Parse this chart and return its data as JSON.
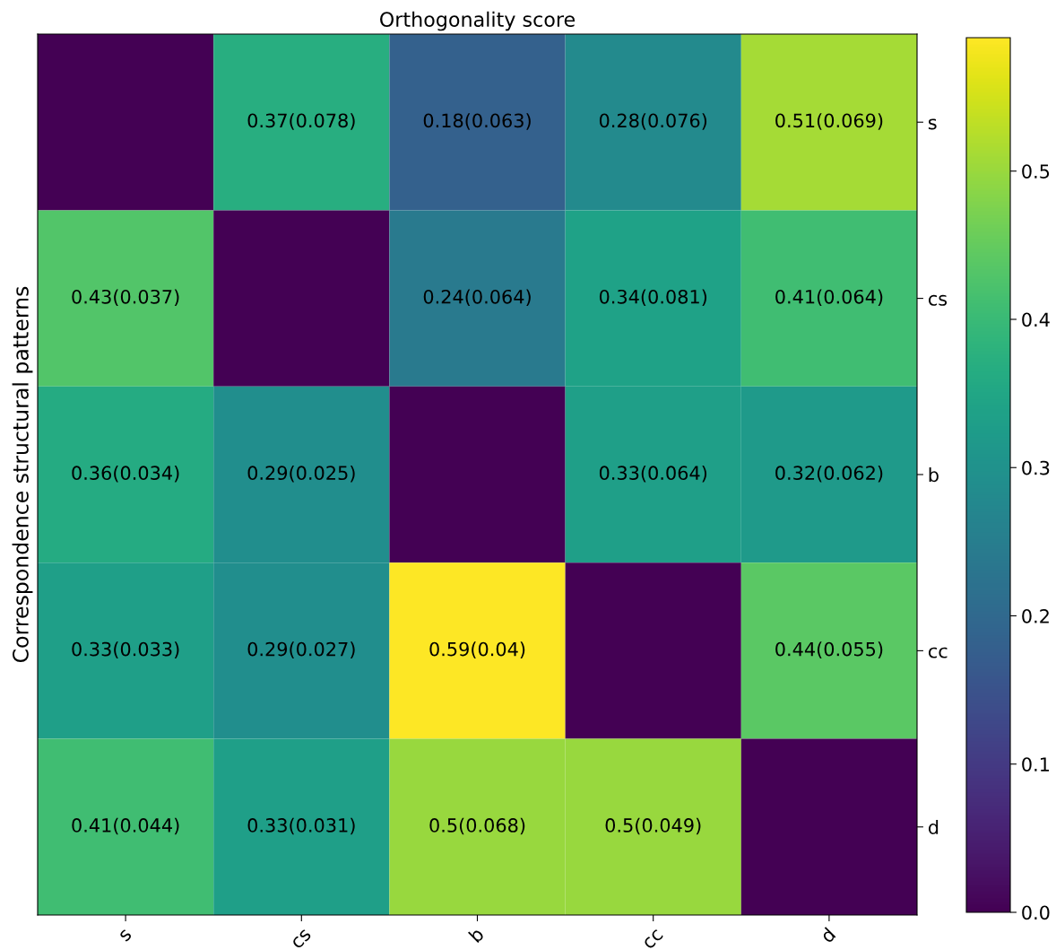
{
  "chart_data": {
    "type": "heatmap",
    "title": "Orthogonality score",
    "ylabel": "Correspondence structural patterns",
    "categories": [
      "s",
      "cs",
      "b",
      "cc",
      "d"
    ],
    "y_categories": [
      "s",
      "cs",
      "b",
      "cc",
      "d"
    ],
    "cells": [
      [
        0,
        0.37,
        0.18,
        0.28,
        0.51
      ],
      [
        0.43,
        0,
        0.24,
        0.34,
        0.41
      ],
      [
        0.36,
        0.29,
        0,
        0.33,
        0.32
      ],
      [
        0.33,
        0.29,
        0.59,
        0,
        0.44
      ],
      [
        0.41,
        0.33,
        0.5,
        0.5,
        0
      ]
    ],
    "cell_labels": [
      [
        null,
        "0.37(0.078)",
        "0.18(0.063)",
        "0.28(0.076)",
        "0.51(0.069)"
      ],
      [
        "0.43(0.037)",
        null,
        "0.24(0.064)",
        "0.34(0.081)",
        "0.41(0.064)"
      ],
      [
        "0.36(0.034)",
        "0.29(0.025)",
        null,
        "0.33(0.064)",
        "0.32(0.062)"
      ],
      [
        "0.33(0.033)",
        "0.29(0.027)",
        "0.59(0.04)",
        null,
        "0.44(0.055)"
      ],
      [
        "0.41(0.044)",
        "0.33(0.031)",
        "0.5(0.068)",
        "0.5(0.049)",
        null
      ]
    ],
    "clim": [
      0,
      0.59
    ],
    "cticks": [
      {
        "value": 0,
        "label": "0.0"
      },
      0.1,
      0.2,
      0.3,
      0.4,
      0.5
    ]
  }
}
